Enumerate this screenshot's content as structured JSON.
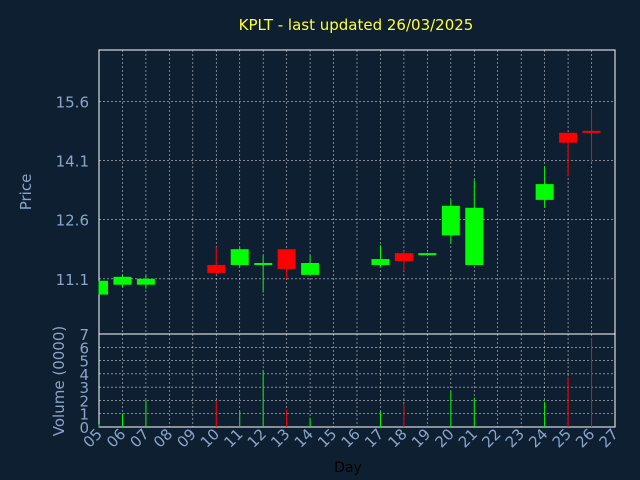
{
  "chart_data": {
    "type": "candlestick",
    "title": "KPLT - last updated 26/03/2025",
    "xlabel": "Day",
    "price_panel": {
      "ylabel": "Price",
      "yticks": [
        "11.1",
        "12.6",
        "14.1",
        "15.6"
      ],
      "ylim": [
        9.7,
        16.9
      ]
    },
    "volume_panel": {
      "ylabel": "Volume (0000)",
      "yticks": [
        "0",
        "1",
        "2",
        "3",
        "4",
        "5",
        "6",
        "7"
      ],
      "ylim": [
        0,
        7
      ]
    },
    "x_tick_labels": [
      "05",
      "06",
      "07",
      "08",
      "09",
      "10",
      "11",
      "12",
      "13",
      "14",
      "15",
      "16",
      "17",
      "18",
      "19",
      "20",
      "21",
      "22",
      "23",
      "24",
      "25",
      "26",
      "27"
    ],
    "candles": [
      {
        "day": "05",
        "open": 10.7,
        "close": 11.05,
        "high": 11.05,
        "low": 10.7,
        "volume": 0.2
      },
      {
        "day": "06",
        "open": 10.95,
        "close": 11.15,
        "high": 11.2,
        "low": 10.9,
        "volume": 1.0
      },
      {
        "day": "07",
        "open": 10.95,
        "close": 11.1,
        "high": 11.2,
        "low": 10.85,
        "volume": 2.0
      },
      {
        "day": "10",
        "open": 11.45,
        "close": 11.25,
        "high": 11.9,
        "low": 11.2,
        "volume": 2.0
      },
      {
        "day": "11",
        "open": 11.45,
        "close": 11.85,
        "high": 11.9,
        "low": 11.4,
        "volume": 1.2
      },
      {
        "day": "12",
        "open": 11.45,
        "close": 11.5,
        "high": 11.7,
        "low": 10.75,
        "volume": 4.3
      },
      {
        "day": "13",
        "open": 11.85,
        "close": 11.35,
        "high": 11.85,
        "low": 11.1,
        "volume": 1.3
      },
      {
        "day": "14",
        "open": 11.2,
        "close": 11.5,
        "high": 11.7,
        "low": 11.2,
        "volume": 0.7
      },
      {
        "day": "17",
        "open": 11.45,
        "close": 11.6,
        "high": 11.95,
        "low": 11.4,
        "volume": 1.2
      },
      {
        "day": "18",
        "open": 11.75,
        "close": 11.55,
        "high": 11.8,
        "low": 11.3,
        "volume": 1.7
      },
      {
        "day": "19",
        "open": 11.7,
        "close": 11.75,
        "high": 11.75,
        "low": 11.7,
        "volume": 0.1
      },
      {
        "day": "20",
        "open": 12.2,
        "close": 12.95,
        "high": 13.1,
        "low": 12.0,
        "volume": 2.7
      },
      {
        "day": "21",
        "open": 11.45,
        "close": 12.9,
        "high": 13.6,
        "low": 11.45,
        "volume": 2.2
      },
      {
        "day": "24",
        "open": 13.1,
        "close": 13.5,
        "high": 13.95,
        "low": 12.9,
        "volume": 1.9
      },
      {
        "day": "25",
        "open": 14.8,
        "close": 14.55,
        "high": 14.8,
        "low": 13.7,
        "volume": 3.8
      },
      {
        "day": "26",
        "open": 14.85,
        "close": 14.8,
        "high": 15.4,
        "low": 14.05,
        "volume": 6.7
      }
    ],
    "colors": {
      "background": "#0f1f32",
      "up": "#00ff00",
      "down": "#ff0000",
      "panel_border": "#ffffff",
      "axis_text": "#8aa5c8",
      "title": "#ffff33",
      "xlabel": "#000000"
    },
    "grid": true
  }
}
